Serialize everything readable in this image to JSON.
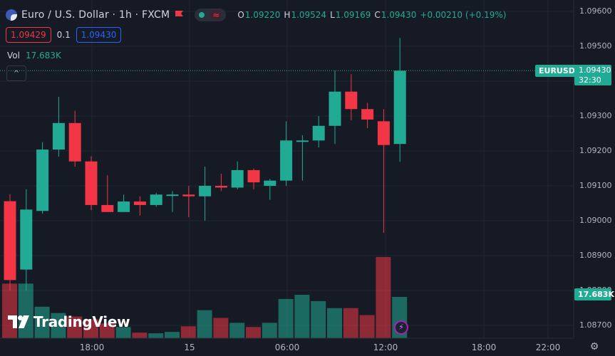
{
  "header": {
    "title": "Euro / U.S. Dollar · 1h · FXCM",
    "ohlc": [
      {
        "label": "O",
        "value": "1.09220"
      },
      {
        "label": "H",
        "value": "1.09524"
      },
      {
        "label": "L",
        "value": "1.09169"
      },
      {
        "label": "C",
        "value": "1.09430"
      }
    ],
    "change": "+0.00210 (+0.19%)",
    "wave_symbol": "≈"
  },
  "quote": {
    "bid": "1.09429",
    "spread": "0.1",
    "ask": "1.09430"
  },
  "volume": {
    "label": "Vol",
    "value": "17.683K"
  },
  "collapse_symbol": "^",
  "badges": {
    "symbol": "EURUSD",
    "price": "1.09430",
    "countdown": "32:30",
    "volume": "17.683K"
  },
  "logo": {
    "text": "TradingView"
  },
  "settings_symbol": "⚙",
  "bolt_symbol": "⚡",
  "colors": {
    "up": "#22ab94",
    "down": "#f23645",
    "background": "#161a25",
    "grid": "#232632",
    "ask": "#2962ff"
  },
  "chart_data": {
    "type": "candlestick",
    "symbol": "EURUSD",
    "interval": "1h",
    "ylim": [
      1.0866,
      1.0963
    ],
    "y_ticks": [
      "1.09600",
      "1.09500",
      "1.09400",
      "1.09300",
      "1.09200",
      "1.09100",
      "1.09000",
      "1.08900",
      "1.08800",
      "1.08700"
    ],
    "x_ticks": [
      "18:00",
      "15",
      "06:00",
      "12:00",
      "18:00",
      "22:00"
    ],
    "last_price": 1.0943,
    "candles": [
      {
        "o": 1.09056,
        "h": 1.09076,
        "l": 1.088,
        "c": 1.0883
      },
      {
        "o": 1.0886,
        "h": 1.0909,
        "l": 1.088,
        "c": 1.09032
      },
      {
        "o": 1.09028,
        "h": 1.09225,
        "l": 1.0902,
        "c": 1.09204
      },
      {
        "o": 1.09204,
        "h": 1.09355,
        "l": 1.09184,
        "c": 1.0928
      },
      {
        "o": 1.0928,
        "h": 1.09315,
        "l": 1.09155,
        "c": 1.0917
      },
      {
        "o": 1.0917,
        "h": 1.09185,
        "l": 1.0903,
        "c": 1.09045
      },
      {
        "o": 1.09045,
        "h": 1.0913,
        "l": 1.09025,
        "c": 1.09025
      },
      {
        "o": 1.09025,
        "h": 1.09075,
        "l": 1.09025,
        "c": 1.09055
      },
      {
        "o": 1.09055,
        "h": 1.0907,
        "l": 1.09015,
        "c": 1.09045
      },
      {
        "o": 1.09045,
        "h": 1.0908,
        "l": 1.0904,
        "c": 1.09075
      },
      {
        "o": 1.09075,
        "h": 1.09085,
        "l": 1.09025,
        "c": 1.09075
      },
      {
        "o": 1.09075,
        "h": 1.091,
        "l": 1.0901,
        "c": 1.0907
      },
      {
        "o": 1.0907,
        "h": 1.09155,
        "l": 1.09,
        "c": 1.091
      },
      {
        "o": 1.091,
        "h": 1.09135,
        "l": 1.09085,
        "c": 1.09095
      },
      {
        "o": 1.09095,
        "h": 1.0917,
        "l": 1.0909,
        "c": 1.09145
      },
      {
        "o": 1.09145,
        "h": 1.0915,
        "l": 1.0909,
        "c": 1.0911
      },
      {
        "o": 1.091,
        "h": 1.0912,
        "l": 1.0906,
        "c": 1.09115
      },
      {
        "o": 1.09115,
        "h": 1.09285,
        "l": 1.091,
        "c": 1.0923
      },
      {
        "o": 1.0923,
        "h": 1.09245,
        "l": 1.09115,
        "c": 1.0923
      },
      {
        "o": 1.0923,
        "h": 1.093,
        "l": 1.0921,
        "c": 1.09272
      },
      {
        "o": 1.09272,
        "h": 1.0943,
        "l": 1.0922,
        "c": 1.0937
      },
      {
        "o": 1.0937,
        "h": 1.0942,
        "l": 1.09288,
        "c": 1.0932
      },
      {
        "o": 1.0932,
        "h": 1.09338,
        "l": 1.09265,
        "c": 1.0929
      },
      {
        "o": 1.09285,
        "h": 1.0932,
        "l": 1.08965,
        "c": 1.09217
      },
      {
        "o": 1.0922,
        "h": 1.09524,
        "l": 1.09169,
        "c": 1.0943
      }
    ],
    "volume": [
      {
        "v": 78,
        "up": false
      },
      {
        "v": 78,
        "up": true
      },
      {
        "v": 45,
        "up": true
      },
      {
        "v": 36,
        "up": true
      },
      {
        "v": 31,
        "up": false
      },
      {
        "v": 27,
        "up": false
      },
      {
        "v": 21,
        "up": false
      },
      {
        "v": 16,
        "up": true
      },
      {
        "v": 8,
        "up": false
      },
      {
        "v": 7,
        "up": true
      },
      {
        "v": 9,
        "up": true
      },
      {
        "v": 17,
        "up": false
      },
      {
        "v": 40,
        "up": true
      },
      {
        "v": 29,
        "up": false
      },
      {
        "v": 22,
        "up": true
      },
      {
        "v": 16,
        "up": false
      },
      {
        "v": 22,
        "up": true
      },
      {
        "v": 56,
        "up": true
      },
      {
        "v": 62,
        "up": true
      },
      {
        "v": 53,
        "up": true
      },
      {
        "v": 43,
        "up": true
      },
      {
        "v": 43,
        "up": false
      },
      {
        "v": 33,
        "up": false
      },
      {
        "v": 116,
        "up": false
      },
      {
        "v": 59,
        "up": true
      }
    ]
  }
}
